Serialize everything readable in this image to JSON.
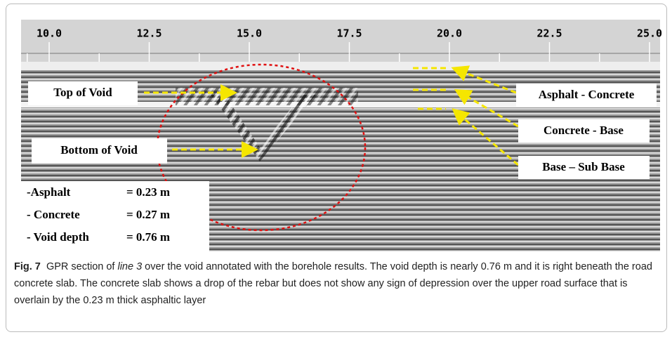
{
  "figure": {
    "ruler_ticks": [
      "10.0",
      "12.5",
      "15.0",
      "17.5",
      "20.0",
      "22.5",
      "25.0"
    ],
    "annotations": {
      "top_of_void": "Top of Void",
      "bottom_of_void": "Bottom of Void",
      "asphalt_concrete": "Asphalt - Concrete",
      "concrete_base": "Concrete - Base",
      "base_sub_base": "Base – Sub Base"
    },
    "results": [
      {
        "label": "-Asphalt",
        "value": "= 0.23 m"
      },
      {
        "label": "- Concrete",
        "value": "= 0.27 m"
      },
      {
        "label": "- Void depth",
        "value": "= 0.76 m"
      }
    ]
  },
  "caption": {
    "label": "Fig. 7",
    "text_before": "GPR section of ",
    "italic": "line 3",
    "text_after": " over the void annotated with the borehole results. The void depth is nearly 0.76 m and it is right beneath the road concrete slab. The concrete slab shows a drop of the rebar but does not show any sign of depression over the upper road surface that is overlain by the 0.23 m thick asphaltic layer"
  }
}
